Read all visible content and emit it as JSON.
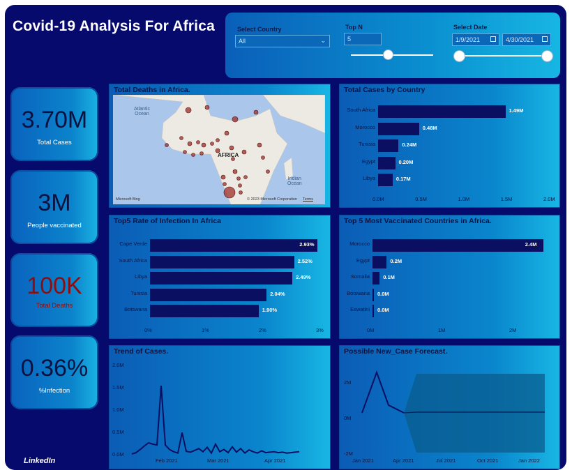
{
  "header": {
    "title": "Covid-19 Analysis For Africa",
    "footer": "LinkedIn"
  },
  "filters": {
    "country": {
      "label": "Select Country",
      "value": "All"
    },
    "topn": {
      "label": "Top N",
      "value": "5"
    },
    "date": {
      "label": "Select Date",
      "start": "1/9/2021",
      "end": "4/30/2021"
    }
  },
  "kpis": [
    {
      "value": "3.70M",
      "label": "Total Cases"
    },
    {
      "value": "3M",
      "label": "People vaccinated"
    },
    {
      "value": "100K",
      "label": "Total Deaths"
    },
    {
      "value": "0.36%",
      "label": "%Infection"
    }
  ],
  "map": {
    "title": "Total Deaths in Africa.",
    "labels": {
      "ocean1": "Atlantic\nOcean",
      "ocean2": "Indian\nOcean",
      "continent": "AFRICA"
    },
    "attribution": "© 2023 Microsoft Corporation",
    "bing": "Microsoft Bing",
    "terms": "Terms"
  },
  "cases_by_country": {
    "title": "Total Cases by Country",
    "chart_data": {
      "type": "bar",
      "categories": [
        "South Africa",
        "Morocco",
        "Tunisia",
        "Egypt",
        "Libya"
      ],
      "values": [
        1.49,
        0.48,
        0.24,
        0.2,
        0.17
      ],
      "value_labels": [
        "1.49M",
        "0.48M",
        "0.24M",
        "0.20M",
        "0.17M"
      ],
      "xlim": [
        0,
        2
      ],
      "ticks": [
        "0.0M",
        "0.5M",
        "1.0M",
        "1.5M",
        "2.0M"
      ]
    }
  },
  "infection_rate": {
    "title": "Top5 Rate of Infection In Africa",
    "chart_data": {
      "type": "bar",
      "categories": [
        "Cape Verde",
        "South Africa",
        "Libya",
        "Tunisia",
        "Botswana"
      ],
      "values": [
        2.93,
        2.52,
        2.49,
        2.04,
        1.9
      ],
      "value_labels": [
        "2.93%",
        "2.52%",
        "2.49%",
        "2.04%",
        "1.90%"
      ],
      "xlim": [
        0,
        3
      ],
      "ticks": [
        "0%",
        "1%",
        "2%",
        "3%"
      ]
    }
  },
  "vaccinated": {
    "title": "Top 5 Most Vaccinated Countries in Africa.",
    "chart_data": {
      "type": "bar",
      "categories": [
        "Morocco",
        "Egypt",
        "Somalia",
        "Botswana",
        "Eswatini"
      ],
      "values": [
        2.4,
        0.2,
        0.1,
        0.0,
        0.0
      ],
      "value_labels": [
        "2.4M",
        "0.2M",
        "0.1M",
        "0.0M",
        "0.0M"
      ],
      "xlim": [
        0,
        2.5
      ],
      "ticks": [
        "0M",
        "1M",
        "2M"
      ]
    }
  },
  "trend": {
    "title": "Trend of Cases.",
    "chart_data": {
      "type": "line",
      "y_ticks": [
        "2.0M",
        "1.5M",
        "1.0M",
        "0.5M",
        "0.0M"
      ],
      "x_ticks": [
        "Feb 2021",
        "Mar 2021",
        "Apr 2021"
      ],
      "ylim": [
        0,
        2.0
      ],
      "values": [
        0.0,
        0.03,
        0.1,
        0.18,
        0.25,
        0.22,
        0.2,
        1.53,
        0.2,
        0.1,
        0.05,
        0.02,
        0.48,
        0.06,
        0.04,
        0.08,
        0.12,
        0.05,
        0.15,
        0.02,
        0.22,
        0.05,
        0.1,
        0.03,
        0.16,
        0.04,
        0.12,
        0.02,
        0.09,
        0.05,
        0.02,
        0.07,
        0.03,
        0.04,
        0.05,
        0.03,
        0.04,
        0.02,
        0.03,
        0.04,
        0.05
      ]
    }
  },
  "forecast": {
    "title": "Possible New_Case Forecast.",
    "chart_data": {
      "type": "line",
      "y_ticks": [
        "2M",
        "0M",
        "-2M"
      ],
      "x_ticks": [
        "Jan 2021",
        "Apr 2021",
        "Jul 2021",
        "Oct 2021",
        "Jan 2022"
      ],
      "ylim": [
        -2,
        2.5
      ]
    }
  }
}
